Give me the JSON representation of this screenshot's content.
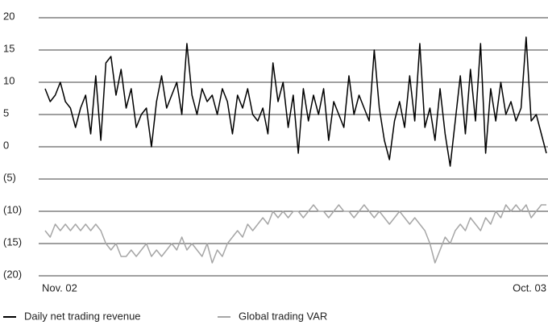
{
  "chart_data": {
    "type": "line",
    "categories": [
      "Nov. 02",
      null,
      null,
      null,
      null,
      null,
      null,
      null,
      null,
      null,
      null,
      null,
      null,
      null,
      null,
      null,
      null,
      null,
      null,
      null,
      null,
      null,
      null,
      null,
      null,
      null,
      null,
      null,
      null,
      null,
      null,
      null,
      null,
      null,
      null,
      null,
      null,
      null,
      null,
      null,
      null,
      null,
      null,
      null,
      null,
      null,
      null,
      null,
      null,
      null,
      null,
      null,
      null,
      null,
      null,
      null,
      null,
      null,
      null,
      null,
      null,
      null,
      null,
      null,
      null,
      null,
      null,
      null,
      null,
      null,
      null,
      null,
      null,
      null,
      null,
      null,
      null,
      null,
      null,
      null,
      null,
      null,
      null,
      null,
      null,
      null,
      null,
      null,
      null,
      null,
      null,
      null,
      null,
      null,
      null,
      null,
      null,
      null,
      null,
      "Oct. 03"
    ],
    "series": [
      {
        "name": "Daily net trading revenue",
        "color": "#000000",
        "values": [
          9,
          7,
          8,
          10,
          7,
          6,
          3,
          6,
          8,
          2,
          11,
          1,
          13,
          14,
          8,
          12,
          6,
          9,
          3,
          5,
          6,
          0,
          7,
          11,
          6,
          8,
          10,
          5,
          16,
          8,
          5,
          9,
          7,
          8,
          5,
          9,
          7,
          2,
          8,
          6,
          9,
          5,
          4,
          6,
          2,
          13,
          7,
          10,
          3,
          8,
          -1,
          9,
          4,
          8,
          5,
          9,
          1,
          7,
          5,
          3,
          11,
          5,
          8,
          6,
          4,
          15,
          6,
          1,
          -2,
          4,
          7,
          3,
          11,
          4,
          16,
          3,
          6,
          1,
          9,
          2,
          -3,
          4,
          11,
          2,
          12,
          4,
          16,
          -1,
          9,
          4,
          10,
          5,
          7,
          4,
          6,
          17,
          4,
          5,
          2,
          -1
        ]
      },
      {
        "name": "Global trading VAR",
        "color": "#a6a6a6",
        "values": [
          -13,
          -14,
          -12,
          -13,
          -12,
          -13,
          -12,
          -13,
          -12,
          -13,
          -12,
          -13,
          -15,
          -16,
          -15,
          -17,
          -17,
          -16,
          -17,
          -16,
          -15,
          -17,
          -16,
          -17,
          -16,
          -15,
          -16,
          -14,
          -16,
          -15,
          -16,
          -17,
          -15,
          -18,
          -16,
          -17,
          -15,
          -14,
          -13,
          -14,
          -12,
          -13,
          -12,
          -11,
          -12,
          -10,
          -11,
          -10,
          -11,
          -10,
          -10,
          -11,
          -10,
          -9,
          -10,
          -10,
          -11,
          -10,
          -9,
          -10,
          -10,
          -11,
          -10,
          -9,
          -10,
          -11,
          -10,
          -11,
          -12,
          -11,
          -10,
          -11,
          -12,
          -11,
          -12,
          -13,
          -15,
          -18,
          -16,
          -14,
          -15,
          -13,
          -12,
          -13,
          -11,
          -12,
          -13,
          -11,
          -12,
          -10,
          -11,
          -9,
          -10,
          -9,
          -10,
          -9,
          -11,
          -10,
          -9,
          -9
        ]
      }
    ],
    "ylim": [
      -20,
      20
    ],
    "yticks": [
      20,
      15,
      10,
      5,
      0,
      {
        "value": -5,
        "label": "(5)"
      },
      {
        "value": -10,
        "label": "(10)"
      },
      {
        "value": -15,
        "label": "(15)"
      },
      {
        "value": -20,
        "label": "(20)"
      }
    ],
    "grid": true,
    "legend": "bottom-left"
  }
}
